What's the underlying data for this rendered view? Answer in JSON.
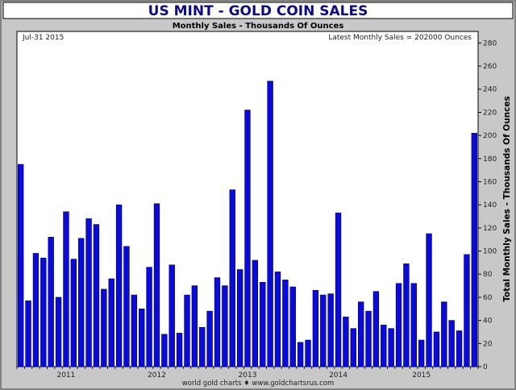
{
  "chart_data": {
    "type": "bar",
    "title": "US MINT - GOLD COIN SALES",
    "subtitle": "Monthly Sales - Thousands Of Ounces",
    "date_label": "Jul-31  2015",
    "latest_label": "Latest Monthly Sales = 202000 Ounces",
    "ylabel": "Total Monthly Sales - Thousands Of Ounces",
    "footer": "world gold charts  ♦  www.goldchartsrus.com",
    "ylim": [
      0,
      290
    ],
    "yticks": [
      0,
      20,
      40,
      60,
      80,
      100,
      120,
      140,
      160,
      180,
      200,
      220,
      240,
      260,
      280
    ],
    "year_labels": [
      {
        "label": "2011",
        "month_index": 6
      },
      {
        "label": "2012",
        "month_index": 18
      },
      {
        "label": "2013",
        "month_index": 30
      },
      {
        "label": "2014",
        "month_index": 42
      },
      {
        "label": "2015",
        "month_index": 53
      }
    ],
    "start_month": "2010-07",
    "values": [
      175,
      57,
      98,
      94,
      112,
      60,
      134,
      93,
      111,
      128,
      123,
      67,
      76,
      140,
      104,
      62,
      50,
      86,
      141,
      28,
      88,
      29,
      62,
      70,
      34,
      48,
      77,
      70,
      153,
      84,
      222,
      92,
      73,
      247,
      82,
      75,
      69,
      21,
      23,
      66,
      62,
      63,
      133,
      43,
      33,
      56,
      48,
      65,
      36,
      33,
      72,
      89,
      72,
      23,
      115,
      30,
      56,
      40,
      31,
      97,
      202
    ],
    "colors": {
      "bar": "#0a0adc",
      "bar_edge": "#000050",
      "title": "#0c0c80",
      "plot_bg": "#ffffff",
      "frame_bg": "#c8c8c8"
    }
  }
}
